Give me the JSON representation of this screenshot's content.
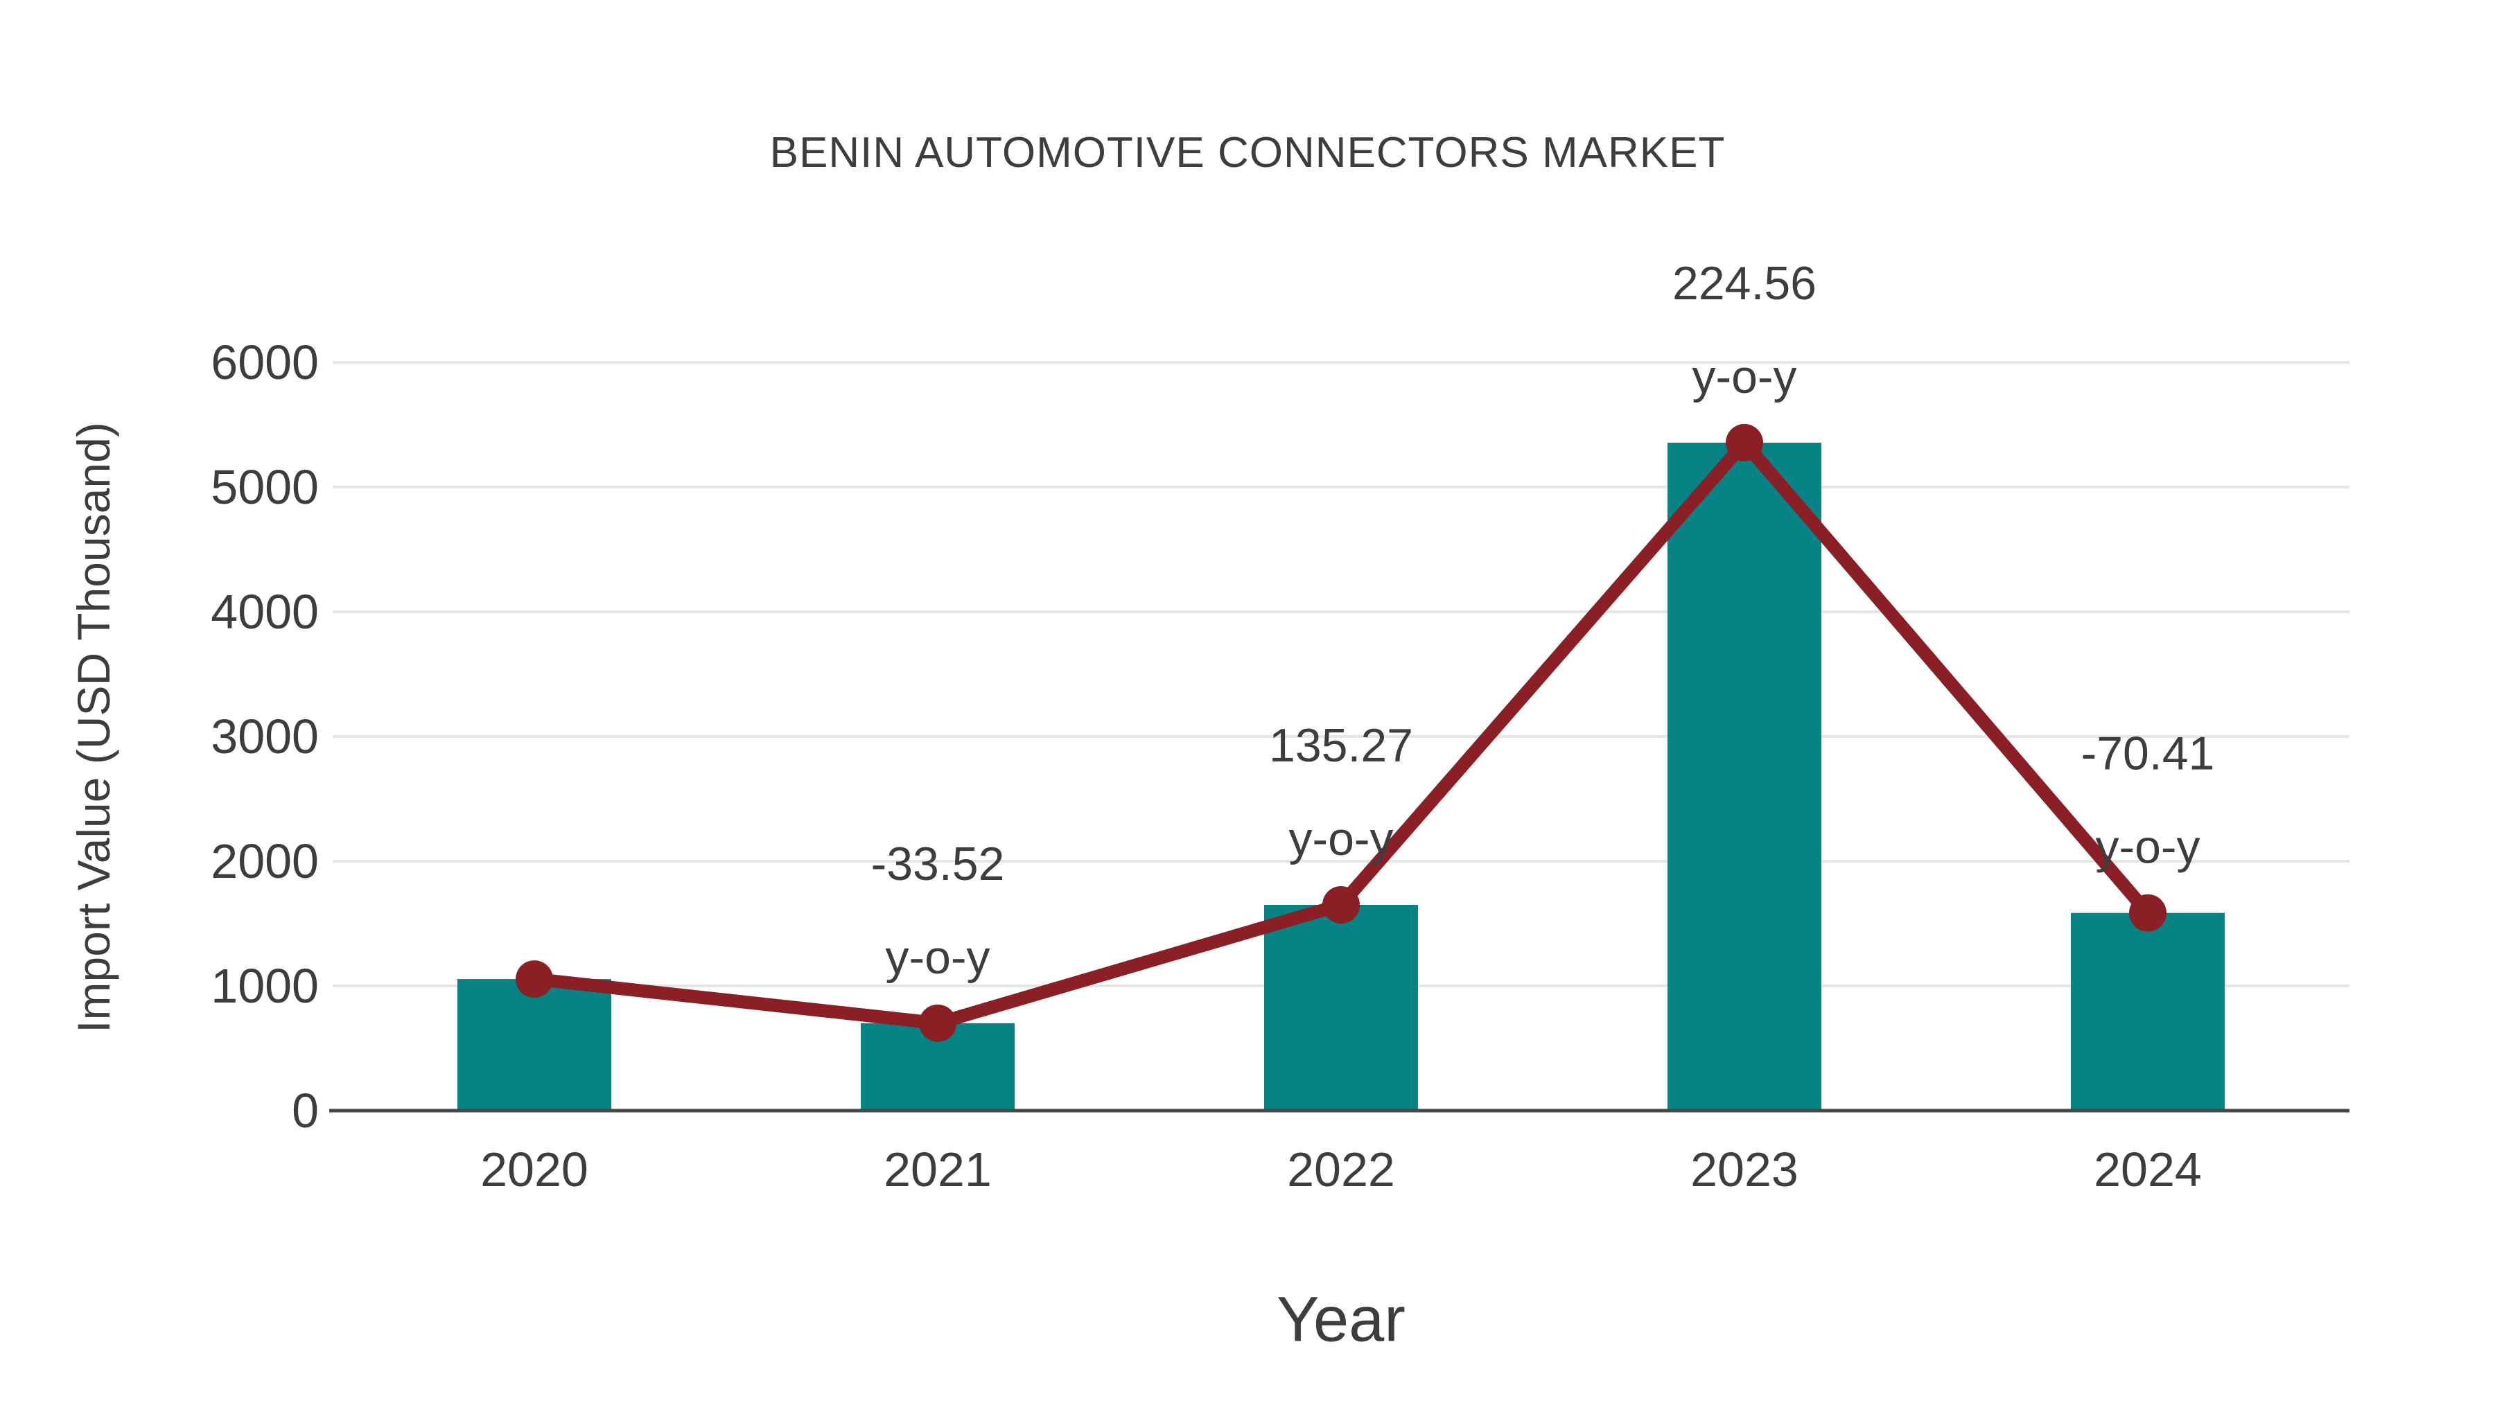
{
  "figure": {
    "title": "BENIN AUTOMOTIVE CONNECTORS MARKET",
    "background_color": "#ffffff",
    "text_color": "#3d3d3d",
    "gridline_color": "#e6e6e6",
    "axis_line_color": "#474747"
  },
  "chart_data": {
    "type": "bar",
    "title": "BENIN AUTOMOTIVE CONNECTORS MARKET",
    "xlabel": "Year",
    "ylabel": "Import Value (USD Thousand)",
    "categories": [
      "2020",
      "2021",
      "2022",
      "2023",
      "2024"
    ],
    "series": [
      {
        "name": "Import Value bars",
        "type": "bar",
        "values": [
          1055,
          701,
          1650,
          5356,
          1585
        ],
        "color": "#078285"
      },
      {
        "name": "Import Value trend line",
        "type": "line",
        "values": [
          1055,
          701,
          1650,
          5356,
          1585
        ],
        "color": "#8a2025"
      }
    ],
    "annotations": [
      {
        "category": "2021",
        "value": "-33.52",
        "suffix": "y-o-y"
      },
      {
        "category": "2022",
        "value": "135.27",
        "suffix": "y-o-y"
      },
      {
        "category": "2023",
        "value": "224.56",
        "suffix": "y-o-y"
      },
      {
        "category": "2024",
        "value": "-70.41",
        "suffix": "y-o-y"
      }
    ],
    "y_ticks": [
      0,
      1000,
      2000,
      3000,
      4000,
      5000,
      6000
    ],
    "ylim": [
      0,
      6000
    ],
    "grid": true,
    "legend_position": "none"
  }
}
